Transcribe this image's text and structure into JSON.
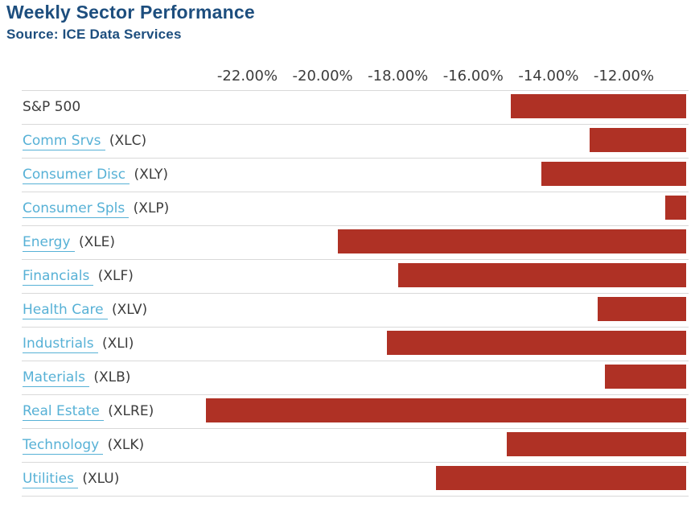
{
  "header": {
    "title": "Weekly Sector Performance",
    "source": "Source: ICE Data Services"
  },
  "colors": {
    "title_text": "#1d4e7e",
    "link_text": "#57b1d6",
    "plain_text": "#3c3c3c",
    "bar_fill": "#af3125",
    "separator": "#d9d9d9"
  },
  "chart_data": {
    "type": "bar",
    "orientation": "horizontal",
    "title": "Weekly Sector Performance",
    "subtitle": "Source: ICE Data Services",
    "xlabel": "",
    "ylabel": "",
    "units": "%",
    "grid": "horizontal-row-separators-only",
    "x_axis": {
      "tick_labels": [
        "-22.00%",
        "-20.00%",
        "-18.00%",
        "-16.00%",
        "-14.00%",
        "-12.00%"
      ],
      "tick_values": [
        -22,
        -20,
        -18,
        -16,
        -14,
        -12
      ],
      "bars_clipped_at_right_edge_value": -10.4
    },
    "categories": [
      "S&P 500",
      "Comm Srvs (XLC)",
      "Consumer Disc (XLY)",
      "Consumer Spls (XLP)",
      "Energy (XLE)",
      "Financials (XLF)",
      "Health Care (XLV)",
      "Industrials (XLI)",
      "Materials (XLB)",
      "Real Estate (XLRE)",
      "Technology (XLK)",
      "Utilities (XLU)"
    ],
    "values": [
      -15.0,
      -12.9,
      -14.2,
      -10.9,
      -19.6,
      -18.0,
      -12.7,
      -18.3,
      -12.5,
      -23.1,
      -15.1,
      -17.0
    ],
    "rows": [
      {
        "label": "S&P 500",
        "ticker": "",
        "is_link": false,
        "value": -15.0
      },
      {
        "label": "Comm Srvs",
        "ticker": "(XLC)",
        "is_link": true,
        "value": -12.9
      },
      {
        "label": "Consumer Disc",
        "ticker": "(XLY)",
        "is_link": true,
        "value": -14.2
      },
      {
        "label": "Consumer Spls",
        "ticker": "(XLP)",
        "is_link": true,
        "value": -10.9
      },
      {
        "label": "Energy",
        "ticker": "(XLE)",
        "is_link": true,
        "value": -19.6
      },
      {
        "label": "Financials",
        "ticker": "(XLF)",
        "is_link": true,
        "value": -18.0
      },
      {
        "label": "Health Care",
        "ticker": "(XLV)",
        "is_link": true,
        "value": -12.7
      },
      {
        "label": "Industrials",
        "ticker": "(XLI)",
        "is_link": true,
        "value": -18.3
      },
      {
        "label": "Materials",
        "ticker": "(XLB)",
        "is_link": true,
        "value": -12.5
      },
      {
        "label": "Real Estate",
        "ticker": "(XLRE)",
        "is_link": true,
        "value": -23.1
      },
      {
        "label": "Technology",
        "ticker": "(XLK)",
        "is_link": true,
        "value": -15.1
      },
      {
        "label": "Utilities",
        "ticker": "(XLU)",
        "is_link": true,
        "value": -17.0
      }
    ]
  }
}
